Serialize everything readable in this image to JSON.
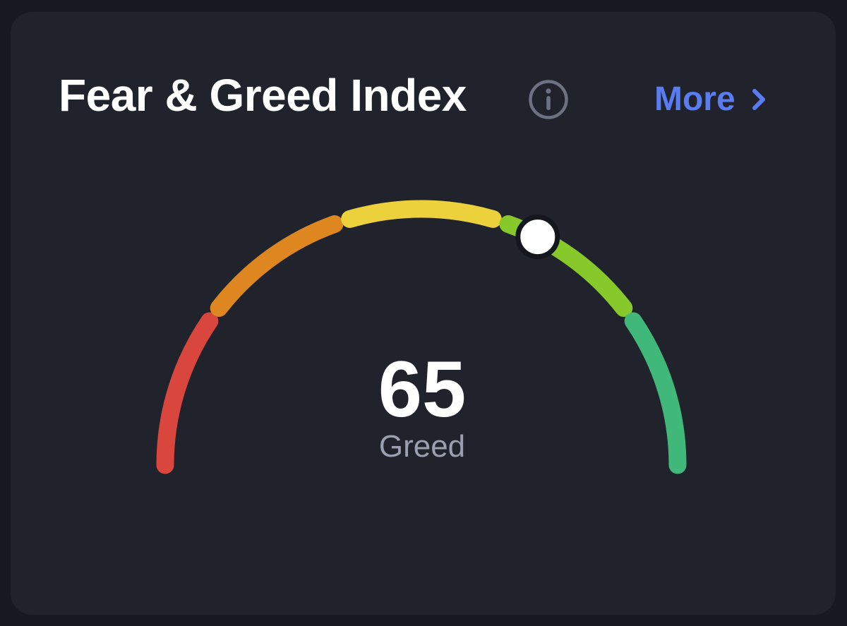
{
  "card": {
    "title": "Fear & Greed Index",
    "info_icon": "info-icon",
    "more_label": "More",
    "more_icon": "chevron-right-icon"
  },
  "gauge": {
    "value": "65",
    "label": "Greed",
    "value_number": 65,
    "min": 0,
    "max": 100,
    "segments": [
      {
        "name": "extreme-fear",
        "from": 0,
        "to": 19,
        "color": "#d9463e"
      },
      {
        "name": "fear",
        "from": 21,
        "to": 39,
        "color": "#de861f"
      },
      {
        "name": "neutral",
        "from": 41,
        "to": 59,
        "color": "#ecd13c"
      },
      {
        "name": "greed",
        "from": 61,
        "to": 79,
        "color": "#87c92a"
      },
      {
        "name": "extreme-greed",
        "from": 81,
        "to": 100,
        "color": "#3fb87a"
      }
    ],
    "indicator_color": "#ffffff",
    "indicator_border": "#15171f"
  },
  "colors": {
    "background": "#161922",
    "card": "#20232c",
    "title": "#ffffff",
    "accent": "#5a7cf2",
    "muted": "#9aa0b0",
    "icon": "#6d7283"
  }
}
